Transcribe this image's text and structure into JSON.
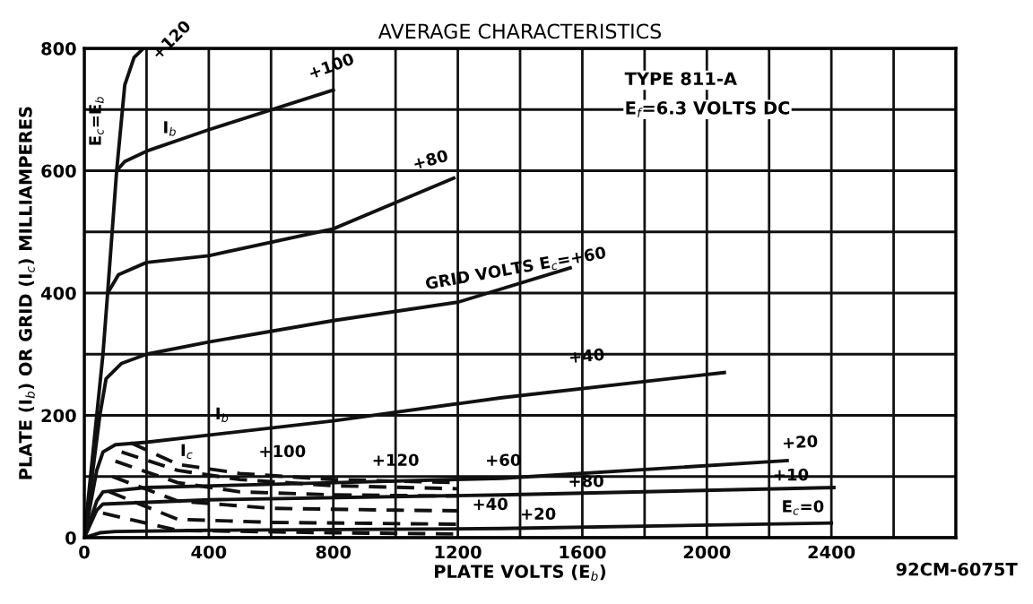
{
  "chart_data": {
    "type": "line",
    "title": "AVERAGE CHARACTERISTICS",
    "xlabel": "PLATE VOLTS (E$_{b}$)",
    "ylabel": "PLATE (I$_{b}$) OR GRID (I$_{c}$) MILLIAMPERES",
    "xlim": [
      0,
      2800
    ],
    "ylim": [
      0,
      800
    ],
    "xticks": [
      0,
      {
        "value": 200,
        "label": null
      },
      400,
      {
        "value": 600,
        "label": null
      },
      800,
      {
        "value": 1000,
        "label": null
      },
      1200,
      {
        "value": 1400,
        "label": null
      },
      1600,
      {
        "value": 1800,
        "label": null
      },
      2000,
      {
        "value": 2200,
        "label": null
      },
      2400,
      {
        "value": 2600,
        "label": null
      },
      {
        "value": 2800,
        "label": null
      }
    ],
    "yticks": [
      0,
      {
        "value": 100,
        "label": null
      },
      200,
      {
        "value": 300,
        "label": null
      },
      400,
      {
        "value": 500,
        "label": null
      },
      600,
      {
        "value": 700,
        "label": null
      },
      800
    ],
    "grid": true,
    "marker": "none",
    "series": [
      {
        "color": "#111111",
        "line_style": "solid",
        "x": [
          0,
          60,
          75,
          104,
          130,
          160,
          190
        ],
        "values": [
          0,
          300,
          400,
          600,
          740,
          785,
          800
        ]
      },
      {
        "color": "#111111",
        "line_style": "solid",
        "x": [
          104,
          130,
          200,
          400,
          800
        ],
        "values": [
          600,
          615,
          632,
          667,
          732
        ]
      },
      {
        "color": "#111111",
        "line_style": "solid",
        "x": [
          75,
          110,
          200,
          400,
          800,
          1187
        ],
        "values": [
          400,
          430,
          450,
          461,
          505,
          588
        ]
      },
      {
        "color": "#111111",
        "line_style": "solid",
        "x": [
          0,
          50,
          70,
          120,
          200,
          400,
          800,
          1200,
          1561
        ],
        "values": [
          0,
          200,
          260,
          285,
          300,
          320,
          355,
          385,
          441
        ]
      },
      {
        "color": "#111111",
        "line_style": "solid",
        "x": [
          0,
          40,
          60,
          100,
          200,
          800,
          1342,
          2056
        ],
        "values": [
          0,
          110,
          140,
          152,
          156,
          191,
          229,
          270
        ]
      },
      {
        "color": "#111111",
        "line_style": "solid",
        "x": [
          0,
          40,
          60,
          200,
          800,
          1342,
          2258
        ],
        "values": [
          0,
          60,
          75,
          82,
          90,
          97,
          126
        ]
      },
      {
        "color": "#111111",
        "line_style": "solid",
        "x": [
          0,
          40,
          60,
          400,
          1342,
          2408
        ],
        "values": [
          0,
          45,
          55,
          62,
          70,
          82
        ]
      },
      {
        "color": "#111111",
        "line_style": "solid",
        "x": [
          0,
          50,
          100,
          400,
          1342,
          2400
        ],
        "values": [
          0,
          8,
          10,
          12,
          15,
          24
        ]
      },
      {
        "color": "#111111",
        "line_style": "dashed",
        "x": [
          150,
          300,
          500,
          800,
          1200
        ],
        "values": [
          155,
          120,
          105,
          95,
          90
        ]
      },
      {
        "color": "#111111",
        "line_style": "dashed",
        "x": [
          120,
          300,
          500,
          800,
          1200
        ],
        "values": [
          140,
          110,
          95,
          85,
          80
        ]
      },
      {
        "color": "#111111",
        "line_style": "dashed",
        "x": [
          100,
          300,
          500,
          800,
          1200
        ],
        "values": [
          125,
          90,
          75,
          70,
          68
        ]
      },
      {
        "color": "#111111",
        "line_style": "dashed",
        "x": [
          90,
          300,
          600,
          1000,
          1200
        ],
        "values": [
          100,
          60,
          48,
          45,
          44
        ]
      },
      {
        "color": "#111111",
        "line_style": "dashed",
        "x": [
          80,
          300,
          600,
          1200
        ],
        "values": [
          75,
          30,
          25,
          22
        ]
      },
      {
        "color": "#111111",
        "line_style": "dashed",
        "x": [
          60,
          300,
          800,
          1200
        ],
        "values": [
          40,
          12,
          8,
          6
        ]
      }
    ],
    "annotations": [
      "E$_{c}$=E$_{b}$",
      "+120",
      "+100",
      "I$_{b}$",
      "+80",
      "GRID VOLTS E$_{c}$=+60",
      "+40",
      "I$_{b}$",
      "+20",
      "+10",
      "E$_{c}$=0",
      "I$_{c}$",
      "+100",
      "+120",
      "+80",
      "+60",
      "+40",
      "+20",
      "TYPE 811-A",
      "E$_{f}$=6.3 VOLTS DC",
      "92CM-6075T"
    ]
  }
}
